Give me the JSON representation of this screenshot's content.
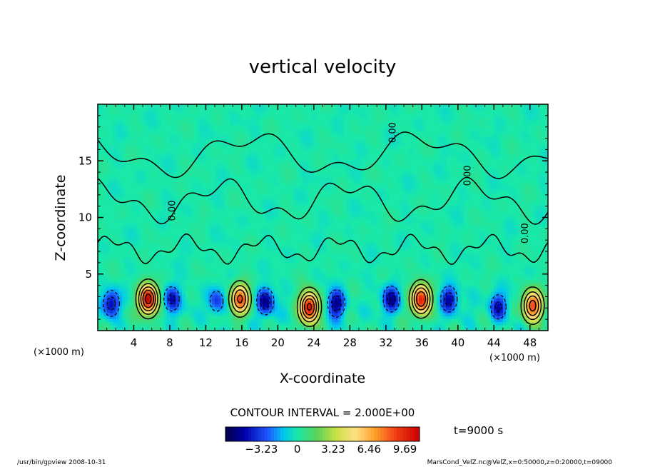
{
  "chart_data": {
    "type": "heatmap",
    "title": "vertical velocity",
    "xlabel": "X-coordinate",
    "ylabel": "Z-coordinate",
    "x_unit": "(×1000 m)",
    "xlim": [
      0,
      50
    ],
    "ylim": [
      0,
      20
    ],
    "x_ticks": [
      4,
      8,
      12,
      16,
      20,
      24,
      28,
      32,
      36,
      40,
      44,
      48
    ],
    "y_ticks": [
      5,
      10,
      15
    ],
    "contour_interval_label": "CONTOUR INTERVAL = 2.000E+00",
    "time_label": "t=9000 s",
    "colorbar": {
      "min": -6.46,
      "max": 11.0,
      "ticks": [
        -3.23,
        0,
        3.23,
        6.46,
        9.69
      ],
      "tick_labels": [
        "−3.23",
        "0",
        "3.23",
        "6.46",
        "9.69"
      ]
    },
    "contour_labels": [
      {
        "text": "0.00",
        "x": 8.6,
        "z": 10.6
      },
      {
        "text": "0.00",
        "x": 33.1,
        "z": 17.5
      },
      {
        "text": "0.00",
        "x": 41.4,
        "z": 13.7
      },
      {
        "text": "0.00",
        "x": 47.8,
        "z": 8.6
      }
    ],
    "updrafts": [
      {
        "x": 5.6,
        "z": 2.8,
        "w": 11.0
      },
      {
        "x": 15.8,
        "z": 2.8,
        "w": 8.5
      },
      {
        "x": 23.5,
        "z": 2.1,
        "w": 10.5
      },
      {
        "x": 35.9,
        "z": 2.8,
        "w": 10.0
      },
      {
        "x": 48.3,
        "z": 2.2,
        "w": 9.0
      }
    ],
    "downdrafts": [
      {
        "x": 1.5,
        "z": 2.4,
        "w": -5.0
      },
      {
        "x": 8.2,
        "z": 2.8,
        "w": -4.5
      },
      {
        "x": 13.2,
        "z": 2.6,
        "w": -3.5
      },
      {
        "x": 18.6,
        "z": 2.6,
        "w": -5.5
      },
      {
        "x": 26.5,
        "z": 2.4,
        "w": -5.5
      },
      {
        "x": 32.6,
        "z": 2.8,
        "w": -5.0
      },
      {
        "x": 39.0,
        "z": 2.8,
        "w": -5.0
      },
      {
        "x": 44.5,
        "z": 2.1,
        "w": -4.5
      }
    ]
  },
  "footer": {
    "program": "/usr/bin/gpview   2008-10-31",
    "source": "MarsCond_VelZ.nc@VelZ,x=0:50000,z=0:20000,t=09000"
  },
  "colors": {
    "background_field": "#19e8a8",
    "frame": "#000000"
  }
}
